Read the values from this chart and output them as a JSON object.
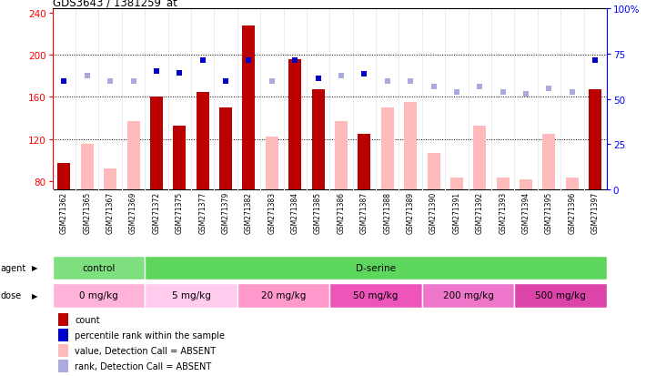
{
  "title": "GDS3643 / 1381259_at",
  "samples": [
    "GSM271362",
    "GSM271365",
    "GSM271367",
    "GSM271369",
    "GSM271372",
    "GSM271375",
    "GSM271377",
    "GSM271379",
    "GSM271382",
    "GSM271383",
    "GSM271384",
    "GSM271385",
    "GSM271386",
    "GSM271387",
    "GSM271388",
    "GSM271389",
    "GSM271390",
    "GSM271391",
    "GSM271392",
    "GSM271393",
    "GSM271394",
    "GSM271395",
    "GSM271396",
    "GSM271397"
  ],
  "count_present": [
    97,
    null,
    null,
    null,
    160,
    133,
    165,
    150,
    228,
    null,
    196,
    167,
    null,
    125,
    null,
    null,
    null,
    null,
    null,
    null,
    null,
    null,
    null,
    167
  ],
  "count_absent": [
    null,
    115,
    92,
    137,
    null,
    null,
    null,
    null,
    null,
    122,
    null,
    null,
    137,
    null,
    150,
    155,
    107,
    83,
    133,
    83,
    82,
    125,
    83,
    null
  ],
  "rank_present": [
    175,
    null,
    null,
    null,
    185,
    183,
    195,
    175,
    195,
    null,
    195,
    178,
    null,
    182,
    null,
    null,
    null,
    null,
    null,
    null,
    null,
    null,
    null,
    195
  ],
  "rank_absent": [
    null,
    180,
    175,
    175,
    null,
    null,
    null,
    null,
    null,
    175,
    null,
    null,
    180,
    null,
    175,
    175,
    170,
    165,
    170,
    165,
    163,
    168,
    165,
    null
  ],
  "agents": [
    {
      "label": "control",
      "start": 0,
      "end": 4,
      "color": "#7EE07E"
    },
    {
      "label": "D-serine",
      "start": 4,
      "end": 24,
      "color": "#5CD65C"
    }
  ],
  "doses": [
    {
      "label": "0 mg/kg",
      "start": 0,
      "end": 4,
      "color": "#FFB3D9"
    },
    {
      "label": "5 mg/kg",
      "start": 4,
      "end": 8,
      "color": "#FFCCEE"
    },
    {
      "label": "20 mg/kg",
      "start": 8,
      "end": 12,
      "color": "#FF99CC"
    },
    {
      "label": "50 mg/kg",
      "start": 12,
      "end": 16,
      "color": "#EE55BB"
    },
    {
      "label": "200 mg/kg",
      "start": 16,
      "end": 20,
      "color": "#EE77CC"
    },
    {
      "label": "500 mg/kg",
      "start": 20,
      "end": 24,
      "color": "#DD44AA"
    }
  ],
  "ylim_left": [
    72,
    244
  ],
  "yticks_left": [
    80,
    120,
    160,
    200,
    240
  ],
  "hlines": [
    120,
    160,
    200
  ],
  "ylim_right": [
    0,
    100
  ],
  "yticks_right": [
    0,
    25,
    50,
    75,
    100
  ],
  "count_present_color": "#BB0000",
  "count_absent_color": "#FFBBBB",
  "rank_present_color": "#0000CC",
  "rank_absent_color": "#AAAADD",
  "bg_color": "#FFFFFF",
  "xlabels_bg": "#C8C8C8",
  "bar_width": 0.55
}
